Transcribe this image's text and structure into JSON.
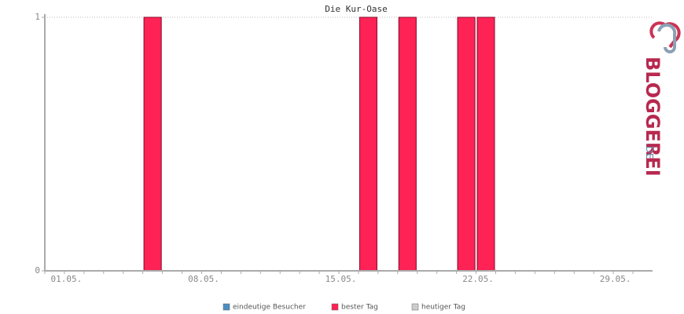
{
  "chart_data": {
    "type": "bar",
    "title": "Die Kur-Oase",
    "categories": [
      "01.05.",
      null,
      null,
      null,
      null,
      null,
      null,
      "08.05.",
      null,
      null,
      null,
      null,
      null,
      null,
      "15.05.",
      null,
      null,
      null,
      null,
      null,
      null,
      "22.05.",
      null,
      null,
      null,
      null,
      null,
      null,
      "29.05.",
      null,
      null
    ],
    "series": [
      {
        "name": "eindeutige Besucher",
        "color": "#4b8fc2",
        "values": [
          0,
          0,
          0,
          0,
          0,
          1,
          0,
          0,
          0,
          0,
          0,
          0,
          0,
          0,
          0,
          0,
          1,
          0,
          1,
          0,
          0,
          1,
          1,
          0,
          0,
          0,
          0,
          0,
          0,
          0,
          0
        ]
      },
      {
        "name": "bester Tag",
        "color": "#ff2255",
        "values": [
          0,
          0,
          0,
          0,
          0,
          1,
          0,
          0,
          0,
          0,
          0,
          0,
          0,
          0,
          0,
          0,
          1,
          0,
          1,
          0,
          0,
          1,
          1,
          0,
          0,
          0,
          0,
          0,
          0,
          0,
          0
        ]
      },
      {
        "name": "heutiger Tag",
        "color": "#cccccc",
        "values": [
          null,
          null,
          null,
          null,
          null,
          null,
          null,
          null,
          null,
          null,
          null,
          null,
          null,
          null,
          null,
          null,
          null,
          null,
          null,
          null,
          null,
          null,
          null,
          null,
          null,
          null,
          null,
          null,
          null,
          null,
          null
        ]
      }
    ],
    "ylim": [
      0,
      1
    ],
    "yticks": [
      0,
      1
    ],
    "grid": true,
    "logo": {
      "text": "BLOGGEREI",
      "suffix": ".DE"
    }
  }
}
